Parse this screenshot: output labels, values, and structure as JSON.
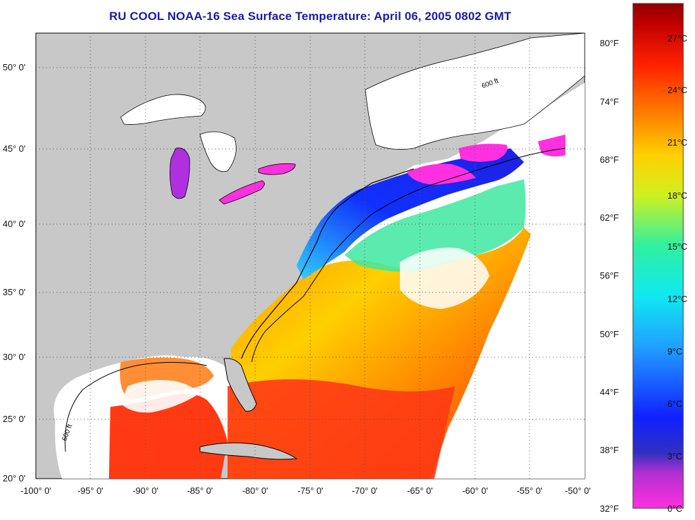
{
  "title": "RU COOL  NOAA-16  Sea Surface Temperature:  April 06, 2005 0802 GMT",
  "lat_labels": [
    "50° 0'",
    "45° 0'",
    "40° 0'",
    "35° 0'",
    "30° 0'",
    "25° 0'",
    "20° 0'"
  ],
  "lon_labels": [
    "-100° 0'",
    "-95° 0'",
    "-90° 0'",
    "-85° 0'",
    "-80° 0'",
    "-75° 0'",
    "-70° 0'",
    "-65° 0'",
    "-60° 0'",
    "-55° 0'",
    "-50° 0'"
  ],
  "contour_label": "600 ft",
  "colorbar": {
    "celsius_ticks": [
      "27°C",
      "24°C",
      "21°C",
      "18°C",
      "15°C",
      "12°C",
      "9°C",
      "6°C",
      "3°C",
      "0°C"
    ],
    "fahrenheit_ticks": [
      "80°F",
      "74°F",
      "68°F",
      "62°F",
      "56°F",
      "50°F",
      "44°F",
      "38°F",
      "32°F"
    ]
  },
  "colors": {
    "land": "#c8c8c8",
    "no_data": "#ffffff",
    "title": "#1a1aa8",
    "warm": "#ff3b10",
    "cold": "#1010e0"
  }
}
